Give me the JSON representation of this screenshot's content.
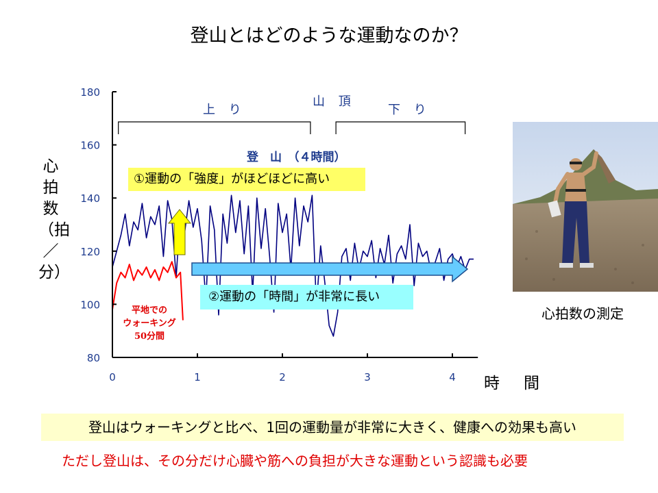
{
  "title": "登山とはどのような運動なのか？",
  "chart_data": {
    "type": "line",
    "ylabel": "心拍数（拍／分）",
    "xlabel": "時　間",
    "xlim": [
      0,
      4.3
    ],
    "ylim": [
      80,
      180
    ],
    "x_ticks": [
      0,
      1,
      2,
      3,
      4
    ],
    "y_ticks": [
      80,
      100,
      120,
      140,
      160,
      180
    ],
    "grid": false,
    "series": [
      {
        "name": "登　山　（４時間）",
        "color": "#000080",
        "x": [
          0.0,
          0.05,
          0.1,
          0.15,
          0.2,
          0.25,
          0.3,
          0.35,
          0.4,
          0.45,
          0.5,
          0.55,
          0.6,
          0.65,
          0.7,
          0.75,
          0.8,
          0.85,
          0.9,
          0.95,
          1.0,
          1.05,
          1.1,
          1.15,
          1.2,
          1.25,
          1.3,
          1.35,
          1.4,
          1.45,
          1.5,
          1.55,
          1.6,
          1.65,
          1.7,
          1.75,
          1.8,
          1.85,
          1.9,
          1.95,
          2.0,
          2.05,
          2.1,
          2.15,
          2.2,
          2.25,
          2.3,
          2.35,
          2.4,
          2.45,
          2.5,
          2.55,
          2.6,
          2.65,
          2.7,
          2.75,
          2.8,
          2.85,
          2.9,
          2.95,
          3.0,
          3.05,
          3.1,
          3.15,
          3.2,
          3.25,
          3.3,
          3.35,
          3.4,
          3.45,
          3.5,
          3.55,
          3.6,
          3.65,
          3.7,
          3.75,
          3.8,
          3.85,
          3.9,
          3.95,
          4.0,
          4.05,
          4.1,
          4.15,
          4.2,
          4.25
        ],
        "values": [
          114,
          120,
          126,
          134,
          122,
          131,
          128,
          138,
          125,
          133,
          130,
          137,
          118,
          139,
          132,
          110,
          135,
          127,
          139,
          129,
          136,
          124,
          101,
          137,
          128,
          96,
          134,
          123,
          141,
          127,
          139,
          119,
          137,
          104,
          140,
          121,
          136,
          118,
          97,
          138,
          127,
          134,
          113,
          140,
          122,
          137,
          131,
          141,
          99,
          122,
          108,
          92,
          88,
          97,
          118,
          121,
          109,
          123,
          113,
          120,
          118,
          124,
          110,
          121,
          115,
          126,
          108,
          119,
          122,
          117,
          130,
          107,
          123,
          118,
          120,
          112,
          116,
          121,
          109,
          117,
          119,
          114,
          118,
          113,
          117,
          117
        ]
      },
      {
        "name": "平地での ウォーキング 50分間",
        "color": "#ff0000",
        "x": [
          0.0,
          0.05,
          0.1,
          0.15,
          0.2,
          0.25,
          0.3,
          0.35,
          0.4,
          0.45,
          0.5,
          0.55,
          0.6,
          0.65,
          0.7,
          0.75,
          0.8,
          0.83
        ],
        "values": [
          98,
          108,
          112,
          110,
          115,
          109,
          113,
          111,
          114,
          110,
          113,
          109,
          114,
          112,
          116,
          110,
          112,
          94
        ]
      }
    ],
    "annotations": [
      "平地での",
      "ウォーキング",
      "50分間"
    ],
    "phases": [
      {
        "label": "上 り",
        "x_start": 0.07,
        "x_end": 2.33
      },
      {
        "label": "山 頂"
      },
      {
        "label": "下 り",
        "x_start": 2.63,
        "x_end": 4.15
      }
    ]
  },
  "callouts": {
    "intensity": "①運動の「強度」がほどほどに高い",
    "duration": "②運動の「時間」が非常に長い"
  },
  "photo_caption": "心拍数の測定",
  "summary": "登山はウォーキングと比べ、1回の運動量が非常に大きく、健康への効果も高い",
  "warning": "ただし登山は、その分だけ心臓や筋への負担が大きな運動という認識も必要",
  "colors": {
    "axis": "#000000",
    "tick_text": "#1f3c8f",
    "hike_line": "#000080",
    "walk_line": "#ff0000",
    "yellow_callout": "#ffff66",
    "cyan_callout": "#99ffff",
    "arrow_fill": "#66ccff",
    "up_arrow_fill": "#ffff00",
    "summary_bg": "#ffffcc"
  }
}
